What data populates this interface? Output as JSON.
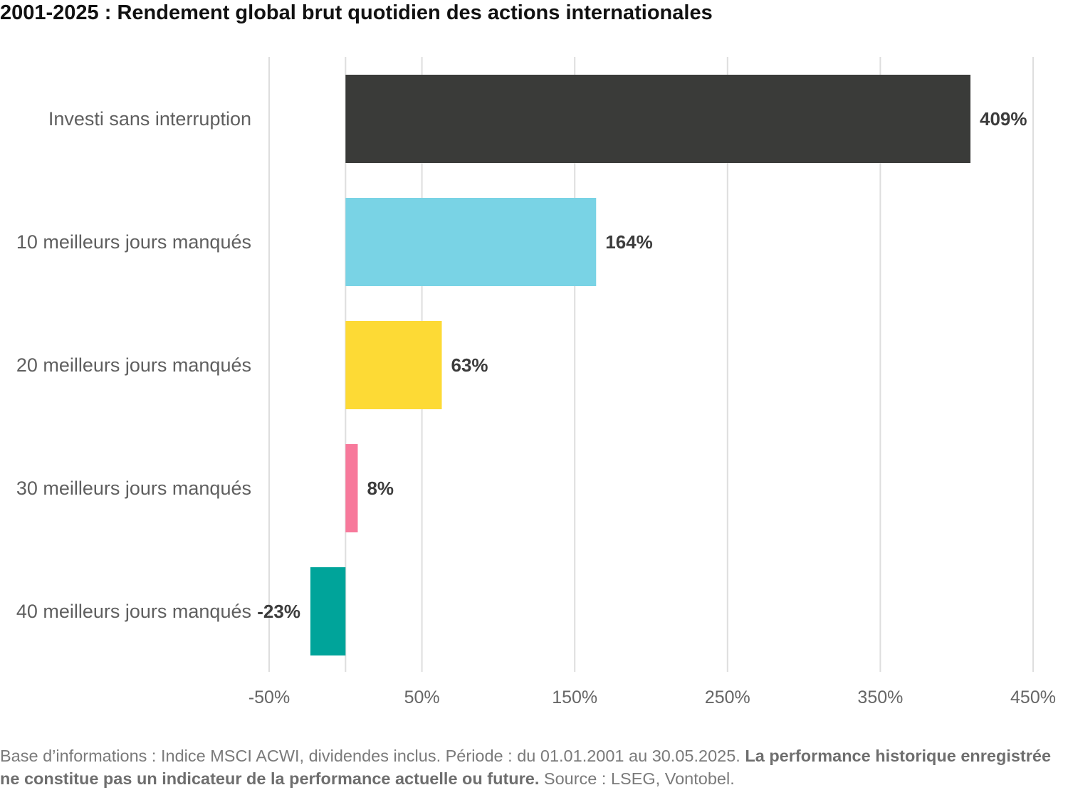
{
  "title": "2001-2025 : Rendement global brut quotidien des actions internationales",
  "chart_data": {
    "type": "bar",
    "orientation": "horizontal",
    "categories": [
      "Investi sans interruption",
      "10 meilleurs jours manqués",
      "20 meilleurs jours manqués",
      "30 meilleurs jours manqués",
      "40 meilleurs jours manqués"
    ],
    "values": [
      409,
      164,
      63,
      8,
      -23
    ],
    "data_labels": [
      "409%",
      "164%",
      "63%",
      "8%",
      "-23%"
    ],
    "colors": [
      "#3a3b39",
      "#79d3e5",
      "#fdda35",
      "#f7799b",
      "#00a49a"
    ],
    "xlim": [
      -50,
      450
    ],
    "xticks": [
      -50,
      50,
      150,
      250,
      350,
      450
    ],
    "xtick_labels": [
      "-50%",
      "50%",
      "150%",
      "250%",
      "350%",
      "450%"
    ],
    "grid": true
  },
  "footnote": {
    "part1": "Base d’informations : Indice MSCI ACWI, dividendes inclus. Période : du 01.01.2001 au 30.05.2025. ",
    "bold": "La performance historique enregistrée ne constitue pas un indicateur de la performance actuelle ou future.",
    "part2": " Source : LSEG, Vontobel."
  }
}
